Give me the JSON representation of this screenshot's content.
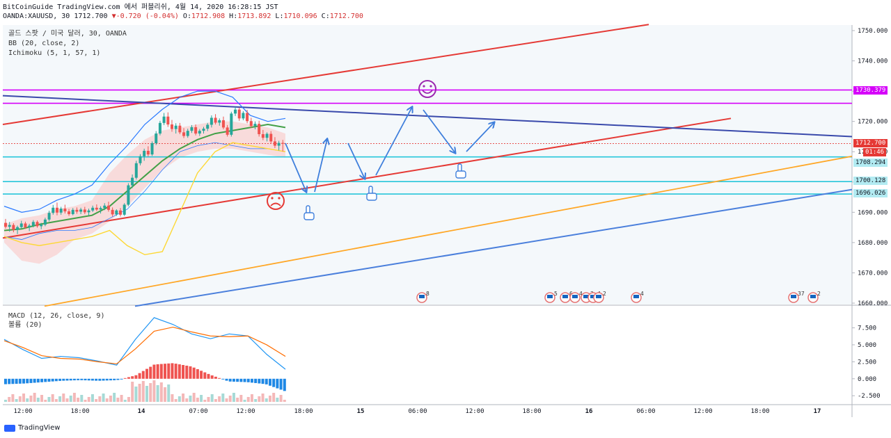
{
  "header": {
    "line1": "BitCoinGuide TradingView.com 에서 퍼블리쉬, 4월 14, 2020 16:28:15 JST",
    "symbol": "OANDA:XAUUSD, 30",
    "last": "1712.700",
    "change": "▼-0.720 (-0.04%)",
    "o_label": "O:",
    "o_value": "1712.908",
    "h_label": "H:",
    "h_value": "1713.892",
    "l_label": "L:",
    "l_value": "1710.096",
    "c_label": "C:",
    "c_value": "1712.700"
  },
  "main_pane": {
    "title": "골드 스팟 / 미국 달러, 30, OANDA",
    "indicator_bb": "BB (20, close, 2)",
    "indicator_ichimoku": "Ichimoku (5, 1, 57, 1)"
  },
  "macd_pane": {
    "indicator_macd": "MACD (12, 26, close, 9)",
    "indicator_volume": "볼륨 (20)"
  },
  "price_tags": {
    "resistance": "1730.379",
    "last_price": "1712.700",
    "countdown": "01:46",
    "level_1708": "1708.294",
    "level_1700": "1700.128",
    "level_1696": "1696.026"
  },
  "event_badges": [
    "8",
    "5",
    "6",
    "4",
    "3",
    "4",
    "2",
    "4",
    "37",
    "2"
  ],
  "brand": "TradingView",
  "colors": {
    "up": "#26a69a",
    "down": "#ef5350",
    "channel": "#e53935",
    "resistance_line": "#3949ab",
    "magenta": "#d500f9",
    "cyan": "#26c6da",
    "orange": "#ffa726",
    "blue_channel": "#4a7fdc",
    "bb_band": "#2979ff",
    "tenkan": "#43a047",
    "ichimoku_line": "#fdd835",
    "cloud_fill": "#f8d7d7",
    "bg_panel": "#f4f8fb",
    "annotation": "#3f7fdc"
  },
  "chart_data": [
    {
      "type": "line",
      "title": "골드 스팟 / 미국 달러, 30, OANDA",
      "xlabel": "",
      "ylabel": "",
      "x_tick_labels": [
        "12:00",
        "18:00",
        "14",
        "07:00",
        "12:00",
        "18:00",
        "15",
        "06:00",
        "12:00",
        "18:00",
        "16",
        "06:00",
        "12:00",
        "18:00",
        "17"
      ],
      "y_tick_labels": [
        "1750.000",
        "1740.000",
        "1730.000",
        "1720.000",
        "1710.000",
        "1700.000",
        "1690.000",
        "1680.000",
        "1670.000",
        "1660.000"
      ],
      "ylim": [
        1659,
        1752
      ],
      "grid": false,
      "series": [
        {
          "type": "candlestick",
          "ohlc": [
            [
              1686.5,
              1687.8,
              1684.6,
              1685.2
            ],
            [
              1685.2,
              1686.8,
              1683.6,
              1685.8
            ],
            [
              1685.8,
              1686.4,
              1683.4,
              1684.2
            ],
            [
              1684.2,
              1685.6,
              1682.8,
              1685.1
            ],
            [
              1685.1,
              1687.2,
              1684.6,
              1686.3
            ],
            [
              1686.3,
              1686.9,
              1684.5,
              1685.0
            ],
            [
              1685.0,
              1686.2,
              1683.8,
              1685.6
            ],
            [
              1685.6,
              1687.4,
              1685.0,
              1686.8
            ],
            [
              1686.8,
              1687.3,
              1684.9,
              1685.4
            ],
            [
              1685.4,
              1686.5,
              1684.4,
              1685.9
            ],
            [
              1685.9,
              1688.2,
              1685.4,
              1687.6
            ],
            [
              1687.6,
              1690.5,
              1687.0,
              1689.8
            ],
            [
              1689.8,
              1692.4,
              1689.2,
              1691.5
            ],
            [
              1691.5,
              1693.2,
              1689.0,
              1689.9
            ],
            [
              1689.9,
              1691.8,
              1689.2,
              1691.2
            ],
            [
              1691.2,
              1692.5,
              1689.6,
              1690.3
            ],
            [
              1690.3,
              1691.1,
              1688.8,
              1689.4
            ],
            [
              1689.4,
              1691.4,
              1689.0,
              1690.8
            ],
            [
              1690.8,
              1691.6,
              1689.5,
              1690.2
            ],
            [
              1690.2,
              1691.5,
              1689.4,
              1690.9
            ],
            [
              1690.9,
              1691.8,
              1689.4,
              1690.0
            ],
            [
              1690.0,
              1691.2,
              1688.9,
              1690.6
            ],
            [
              1690.6,
              1692.2,
              1690.1,
              1691.5
            ],
            [
              1691.5,
              1692.6,
              1690.4,
              1690.9
            ],
            [
              1690.9,
              1692.0,
              1689.6,
              1691.4
            ],
            [
              1691.4,
              1693.0,
              1690.7,
              1692.2
            ],
            [
              1692.2,
              1693.5,
              1690.2,
              1690.8
            ],
            [
              1690.8,
              1691.6,
              1688.6,
              1689.3
            ],
            [
              1689.3,
              1691.0,
              1688.8,
              1690.6
            ],
            [
              1690.6,
              1691.4,
              1688.6,
              1689.2
            ],
            [
              1689.2,
              1693.0,
              1688.8,
              1692.5
            ],
            [
              1692.5,
              1699.6,
              1692.0,
              1698.9
            ],
            [
              1698.9,
              1702.5,
              1698.0,
              1701.4
            ],
            [
              1701.4,
              1707.0,
              1700.8,
              1706.2
            ],
            [
              1706.2,
              1709.2,
              1705.5,
              1708.5
            ],
            [
              1708.5,
              1711.0,
              1707.0,
              1710.3
            ],
            [
              1710.3,
              1711.8,
              1708.4,
              1709.1
            ],
            [
              1709.1,
              1713.4,
              1708.6,
              1712.8
            ],
            [
              1712.8,
              1716.8,
              1712.2,
              1716.0
            ],
            [
              1716.0,
              1720.2,
              1715.4,
              1719.5
            ],
            [
              1719.5,
              1722.8,
              1718.8,
              1721.6
            ],
            [
              1721.6,
              1723.0,
              1718.2,
              1719.0
            ],
            [
              1719.0,
              1720.5,
              1716.6,
              1717.5
            ],
            [
              1717.5,
              1719.4,
              1716.0,
              1718.6
            ],
            [
              1718.6,
              1719.5,
              1715.8,
              1716.4
            ],
            [
              1716.4,
              1717.8,
              1714.5,
              1715.2
            ],
            [
              1715.2,
              1717.6,
              1714.6,
              1716.9
            ],
            [
              1716.9,
              1718.8,
              1716.2,
              1718.1
            ],
            [
              1718.1,
              1719.0,
              1715.4,
              1716.0
            ],
            [
              1716.0,
              1717.5,
              1715.2,
              1716.9
            ],
            [
              1716.9,
              1718.2,
              1716.0,
              1717.6
            ],
            [
              1717.6,
              1719.5,
              1716.8,
              1718.9
            ],
            [
              1718.9,
              1722.0,
              1718.0,
              1721.2
            ],
            [
              1721.2,
              1722.4,
              1719.0,
              1719.6
            ],
            [
              1719.6,
              1721.0,
              1718.6,
              1720.4
            ],
            [
              1720.4,
              1721.6,
              1717.4,
              1718.0
            ],
            [
              1718.0,
              1718.8,
              1715.0,
              1715.6
            ],
            [
              1715.6,
              1723.2,
              1715.0,
              1722.6
            ],
            [
              1722.6,
              1724.8,
              1721.8,
              1723.9
            ],
            [
              1723.9,
              1724.6,
              1720.2,
              1721.0
            ],
            [
              1721.0,
              1723.4,
              1720.4,
              1722.8
            ],
            [
              1722.8,
              1723.8,
              1719.4,
              1720.1
            ],
            [
              1720.1,
              1721.2,
              1717.8,
              1718.5
            ],
            [
              1718.5,
              1720.0,
              1717.4,
              1719.2
            ],
            [
              1719.2,
              1720.2,
              1715.0,
              1715.8
            ],
            [
              1715.8,
              1717.2,
              1713.8,
              1714.6
            ],
            [
              1714.6,
              1716.4,
              1713.4,
              1715.9
            ],
            [
              1715.9,
              1716.8,
              1712.6,
              1713.4
            ],
            [
              1713.4,
              1714.8,
              1711.2,
              1712.0
            ],
            [
              1712.0,
              1713.6,
              1710.4,
              1712.9
            ],
            [
              1712.9,
              1713.9,
              1710.1,
              1712.7
            ]
          ]
        },
        {
          "name": "BB",
          "upper": [
            1692,
            1690,
            1691,
            1694,
            1696,
            1699,
            1706,
            1712,
            1719,
            1724,
            1728,
            1730,
            1730,
            1728,
            1722,
            1720,
            1721
          ],
          "lower": [
            1682,
            1681,
            1683,
            1684,
            1684,
            1685,
            1688,
            1691,
            1697,
            1704,
            1710,
            1712,
            1713,
            1712,
            1711,
            1711,
            1710
          ]
        },
        {
          "name": "Ichimoku",
          "tenkan": [
            1684,
            1684.5,
            1686,
            1687,
            1688,
            1689,
            1692,
            1697,
            1702,
            1707,
            1711,
            1714,
            1716,
            1717,
            1718,
            1719,
            1718
          ],
          "kijun": [
            1682,
            1680,
            1679,
            1680,
            1681,
            1682,
            1684,
            1679,
            1676,
            1677,
            1690,
            1703,
            1710,
            1713,
            1712,
            1711,
            1710
          ],
          "cloud_top": [
            1686,
            1688,
            1689,
            1691,
            1692,
            1694,
            1703,
            1709,
            1714,
            1717,
            1718,
            1719,
            1720,
            1720,
            1719,
            1718,
            1716
          ],
          "cloud_bottom": [
            1680,
            1674,
            1673,
            1676,
            1681,
            1683,
            1687,
            1692,
            1698,
            1704,
            1708,
            1710,
            1711,
            1711,
            1710,
            1709,
            1708
          ]
        }
      ],
      "horizontal_levels": [
        1730.379,
        1726,
        1712.7,
        1708.294,
        1700.128,
        1696.026
      ],
      "trendlines": [
        {
          "from": [
            "12:00 day 13",
            1719.0
          ],
          "to": [
            "06:00 day 16",
            1752.0
          ],
          "color": "channel"
        },
        {
          "from": [
            "12:00 day 13",
            1681.5
          ],
          "to": [
            "12:00 day 16",
            1721.0
          ],
          "color": "channel"
        },
        {
          "from": [
            "12:00 day 13",
            1728.5
          ],
          "to": [
            "18:00 day 16",
            1715.0
          ],
          "color": "resistance_line"
        },
        {
          "from": [
            "18:00 day 13",
            1659.0
          ],
          "to": [
            "18:00 day 16",
            1708.5
          ],
          "color": "orange"
        },
        {
          "from": [
            "06:00 day 14",
            1659.0
          ],
          "to": [
            "18:00 day 16",
            1697.5
          ],
          "color": "blue_channel"
        }
      ]
    },
    {
      "type": "line",
      "title": "MACD (12, 26, close, 9)",
      "y_tick_labels": [
        "7.500",
        "5.000",
        "2.500",
        "0.000",
        "-2.500"
      ],
      "ylim": [
        -3.4,
        9.5
      ],
      "series": [
        {
          "name": "MACD",
          "values": [
            5.8,
            4.3,
            3.0,
            3.3,
            3.1,
            2.6,
            2.0,
            5.8,
            9.0,
            8.0,
            6.6,
            5.9,
            6.6,
            6.3,
            3.6,
            1.4
          ]
        },
        {
          "name": "Signal",
          "values": [
            5.6,
            4.6,
            3.4,
            3.0,
            2.9,
            2.5,
            2.2,
            4.4,
            7.0,
            7.6,
            6.9,
            6.3,
            6.2,
            6.3,
            5.0,
            3.3
          ]
        },
        {
          "name": "Histogram",
          "values": [
            -0.8,
            -0.7,
            -0.5,
            -0.3,
            -0.2,
            -0.3,
            -0.2,
            0.5,
            2.1,
            2.3,
            1.8,
            0.6,
            -0.4,
            -0.5,
            -0.8,
            -1.8
          ]
        }
      ]
    }
  ]
}
